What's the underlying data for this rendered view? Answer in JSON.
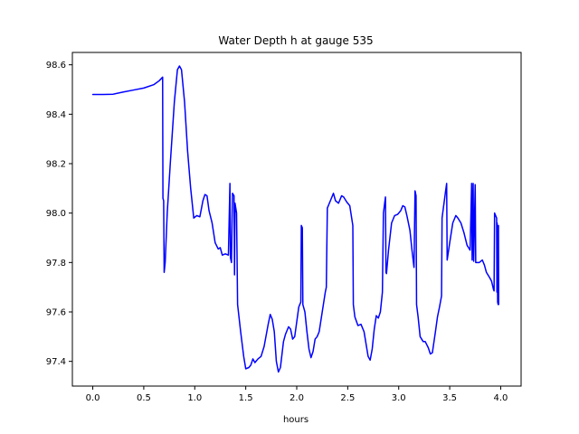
{
  "chart_data": {
    "type": "line",
    "title": "Water Depth h at gauge 535",
    "xlabel": "hours",
    "ylabel": "",
    "xlim": [
      -0.2,
      4.2
    ],
    "ylim": [
      97.3,
      98.65
    ],
    "xticks": [
      0.0,
      0.5,
      1.0,
      1.5,
      2.0,
      2.5,
      3.0,
      3.5,
      4.0
    ],
    "xtick_labels": [
      "0.0",
      "0.5",
      "1.0",
      "1.5",
      "2.0",
      "2.5",
      "3.0",
      "3.5",
      "4.0"
    ],
    "yticks": [
      97.4,
      97.6,
      97.8,
      98.0,
      98.2,
      98.4,
      98.6
    ],
    "ytick_labels": [
      "97.4",
      "97.6",
      "97.8",
      "98.0",
      "98.2",
      "98.4",
      "98.6"
    ],
    "grid": false,
    "series": [
      {
        "color": "#0000ff",
        "points": [
          [
            0.0,
            98.48
          ],
          [
            0.1,
            98.48
          ],
          [
            0.2,
            98.481
          ],
          [
            0.3,
            98.49
          ],
          [
            0.4,
            98.498
          ],
          [
            0.5,
            98.506
          ],
          [
            0.6,
            98.52
          ],
          [
            0.65,
            98.535
          ],
          [
            0.685,
            98.55
          ],
          [
            0.688,
            98.06
          ],
          [
            0.695,
            98.05
          ],
          [
            0.7,
            97.76
          ],
          [
            0.71,
            97.8
          ],
          [
            0.73,
            98.0
          ],
          [
            0.76,
            98.2
          ],
          [
            0.8,
            98.45
          ],
          [
            0.83,
            98.58
          ],
          [
            0.85,
            98.595
          ],
          [
            0.87,
            98.58
          ],
          [
            0.9,
            98.45
          ],
          [
            0.93,
            98.25
          ],
          [
            0.96,
            98.1
          ],
          [
            0.99,
            97.98
          ],
          [
            1.02,
            97.99
          ],
          [
            1.05,
            97.985
          ],
          [
            1.08,
            98.05
          ],
          [
            1.1,
            98.075
          ],
          [
            1.12,
            98.07
          ],
          [
            1.14,
            98.01
          ],
          [
            1.17,
            97.96
          ],
          [
            1.2,
            97.88
          ],
          [
            1.23,
            97.855
          ],
          [
            1.25,
            97.86
          ],
          [
            1.27,
            97.83
          ],
          [
            1.3,
            97.835
          ],
          [
            1.33,
            97.83
          ],
          [
            1.345,
            98.12
          ],
          [
            1.35,
            97.82
          ],
          [
            1.36,
            97.8
          ],
          [
            1.37,
            98.08
          ],
          [
            1.385,
            98.07
          ],
          [
            1.39,
            97.75
          ],
          [
            1.395,
            98.04
          ],
          [
            1.41,
            98.0
          ],
          [
            1.42,
            97.63
          ],
          [
            1.45,
            97.52
          ],
          [
            1.48,
            97.42
          ],
          [
            1.5,
            97.37
          ],
          [
            1.53,
            97.375
          ],
          [
            1.55,
            97.385
          ],
          [
            1.57,
            97.41
          ],
          [
            1.59,
            97.395
          ],
          [
            1.62,
            97.41
          ],
          [
            1.65,
            97.42
          ],
          [
            1.68,
            97.46
          ],
          [
            1.72,
            97.55
          ],
          [
            1.74,
            97.59
          ],
          [
            1.76,
            97.57
          ],
          [
            1.78,
            97.52
          ],
          [
            1.8,
            97.4
          ],
          [
            1.82,
            97.357
          ],
          [
            1.84,
            97.375
          ],
          [
            1.87,
            97.48
          ],
          [
            1.89,
            97.51
          ],
          [
            1.92,
            97.54
          ],
          [
            1.94,
            97.53
          ],
          [
            1.96,
            97.49
          ],
          [
            1.98,
            97.5
          ],
          [
            2.0,
            97.56
          ],
          [
            2.02,
            97.62
          ],
          [
            2.04,
            97.64
          ],
          [
            2.045,
            97.95
          ],
          [
            2.055,
            97.94
          ],
          [
            2.06,
            97.63
          ],
          [
            2.08,
            97.6
          ],
          [
            2.1,
            97.52
          ],
          [
            2.12,
            97.45
          ],
          [
            2.14,
            97.415
          ],
          [
            2.16,
            97.44
          ],
          [
            2.18,
            97.49
          ],
          [
            2.2,
            97.5
          ],
          [
            2.22,
            97.52
          ],
          [
            2.25,
            97.6
          ],
          [
            2.28,
            97.68
          ],
          [
            2.29,
            97.7
          ],
          [
            2.3,
            98.02
          ],
          [
            2.33,
            98.05
          ],
          [
            2.36,
            98.08
          ],
          [
            2.38,
            98.05
          ],
          [
            2.41,
            98.04
          ],
          [
            2.44,
            98.07
          ],
          [
            2.46,
            98.065
          ],
          [
            2.49,
            98.045
          ],
          [
            2.52,
            98.03
          ],
          [
            2.55,
            97.95
          ],
          [
            2.555,
            97.63
          ],
          [
            2.57,
            97.58
          ],
          [
            2.6,
            97.545
          ],
          [
            2.63,
            97.55
          ],
          [
            2.66,
            97.52
          ],
          [
            2.68,
            97.47
          ],
          [
            2.7,
            97.42
          ],
          [
            2.72,
            97.405
          ],
          [
            2.74,
            97.45
          ],
          [
            2.76,
            97.53
          ],
          [
            2.78,
            97.585
          ],
          [
            2.8,
            97.575
          ],
          [
            2.82,
            97.6
          ],
          [
            2.84,
            97.68
          ],
          [
            2.85,
            98.0
          ],
          [
            2.87,
            98.065
          ],
          [
            2.875,
            97.76
          ],
          [
            2.88,
            97.755
          ],
          [
            2.9,
            97.85
          ],
          [
            2.93,
            97.96
          ],
          [
            2.96,
            97.99
          ],
          [
            2.99,
            97.995
          ],
          [
            3.02,
            98.01
          ],
          [
            3.04,
            98.03
          ],
          [
            3.06,
            98.025
          ],
          [
            3.08,
            97.99
          ],
          [
            3.11,
            97.93
          ],
          [
            3.13,
            97.85
          ],
          [
            3.15,
            97.78
          ],
          [
            3.16,
            98.09
          ],
          [
            3.17,
            98.07
          ],
          [
            3.175,
            97.63
          ],
          [
            3.19,
            97.58
          ],
          [
            3.21,
            97.5
          ],
          [
            3.24,
            97.48
          ],
          [
            3.26,
            97.48
          ],
          [
            3.29,
            97.455
          ],
          [
            3.31,
            97.43
          ],
          [
            3.33,
            97.435
          ],
          [
            3.36,
            97.52
          ],
          [
            3.38,
            97.58
          ],
          [
            3.4,
            97.62
          ],
          [
            3.42,
            97.665
          ],
          [
            3.425,
            97.98
          ],
          [
            3.46,
            98.09
          ],
          [
            3.47,
            98.12
          ],
          [
            3.475,
            97.81
          ],
          [
            3.5,
            97.88
          ],
          [
            3.53,
            97.96
          ],
          [
            3.56,
            97.99
          ],
          [
            3.58,
            97.98
          ],
          [
            3.61,
            97.96
          ],
          [
            3.64,
            97.92
          ],
          [
            3.67,
            97.87
          ],
          [
            3.7,
            97.85
          ],
          [
            3.715,
            98.12
          ],
          [
            3.72,
            97.81
          ],
          [
            3.73,
            98.12
          ],
          [
            3.735,
            97.805
          ],
          [
            3.75,
            98.115
          ],
          [
            3.755,
            97.8
          ],
          [
            3.79,
            97.8
          ],
          [
            3.82,
            97.81
          ],
          [
            3.84,
            97.79
          ],
          [
            3.86,
            97.76
          ],
          [
            3.89,
            97.74
          ],
          [
            3.91,
            97.725
          ],
          [
            3.93,
            97.69
          ],
          [
            3.935,
            97.685
          ],
          [
            3.94,
            98.0
          ],
          [
            3.96,
            97.98
          ],
          [
            3.963,
            97.68
          ],
          [
            3.965,
            97.96
          ],
          [
            3.97,
            97.64
          ],
          [
            3.975,
            97.63
          ],
          [
            3.978,
            97.95
          ],
          [
            3.98,
            97.63
          ]
        ]
      }
    ]
  }
}
